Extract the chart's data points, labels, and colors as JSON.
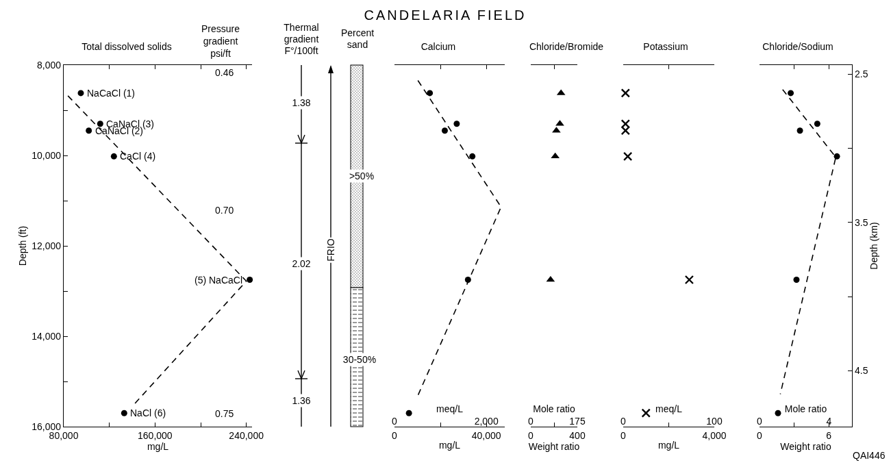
{
  "chart_data": [
    {
      "type": "scatter",
      "title": "Total dissolved solids",
      "xlabel": "mg/L",
      "ylabel": "Depth (ft)",
      "xlim": [
        80000,
        245000
      ],
      "xticks": [
        {
          "value": 80000,
          "label": "80,000"
        },
        {
          "value": 120000,
          "label": null
        },
        {
          "value": 160000,
          "label": "160,000"
        },
        {
          "value": 200000,
          "label": null
        },
        {
          "value": 240000,
          "label": "240,000"
        }
      ],
      "ylim": [
        16000,
        8000
      ],
      "yticks": [
        {
          "value": 8000,
          "label": "8,000"
        },
        {
          "value": 9000,
          "label": null
        },
        {
          "value": 10000,
          "label": "10,000"
        },
        {
          "value": 11000,
          "label": null
        },
        {
          "value": 12000,
          "label": "12,000"
        },
        {
          "value": 13000,
          "label": null
        },
        {
          "value": 14000,
          "label": "14,000"
        },
        {
          "value": 15000,
          "label": null
        },
        {
          "value": 16000,
          "label": "16,000"
        }
      ],
      "series": [
        {
          "type": "scatter",
          "marker": "circle",
          "color": "#000000",
          "x": [
            95000,
            112000,
            102000,
            124000,
            243000,
            133000
          ],
          "values": [
            8620,
            9300,
            9450,
            10020,
            12750,
            15700
          ]
        },
        {
          "type": "line",
          "marker": "none",
          "line_style": "dashed",
          "color": "#000000",
          "x": [
            83700,
            240000,
            142300
          ],
          "values": [
            8680,
            12780,
            15490
          ]
        }
      ],
      "annotations": [
        "Pressure\ngradient\npsi/ft",
        {
          "text": "NaCaCl (1)",
          "x": 95000,
          "y": 8620
        },
        {
          "text": "CaNaCl (3)",
          "x": 112000,
          "y": 9300
        },
        {
          "text": "CaNaCl (2)",
          "x": 102000,
          "y": 9450
        },
        {
          "text": "CaCl (4)",
          "x": 124000,
          "y": 10020
        },
        {
          "text": "(5) NaCaCl",
          "x": 243000,
          "y": 12750
        },
        {
          "text": "NaCl (6)",
          "x": 133000,
          "y": 15700
        },
        "0.46",
        "0.70",
        "0.75"
      ]
    },
    {
      "type": "other",
      "title": "CANDELARIA FIELD",
      "annotations": [
        "Thermal\ngradient\nF°/100ft",
        "1.38",
        "2.02",
        "1.36",
        "Percent\nsand",
        ">50%",
        "30-50%",
        "FRIO"
      ]
    },
    {
      "type": "scatter",
      "title": "Calcium",
      "xlabel": "mg/L",
      "x2label": "meq/L",
      "xlim": [
        0,
        48000
      ],
      "xticks": [
        0,
        {
          "value": 20000,
          "label": null
        },
        {
          "value": 40000,
          "label": "40,000"
        }
      ],
      "x2lim": [
        0,
        2400
      ],
      "x2ticks": [
        0,
        {
          "value": 2000,
          "label": "2,000"
        }
      ],
      "ylim": [
        16000,
        8000
      ],
      "tick_labels": "x",
      "series": [
        {
          "type": "scatter",
          "marker": "circle",
          "color": "#000000",
          "x": [
            15400,
            27100,
            21900,
            33900,
            32000,
            6300
          ],
          "values": [
            8620,
            9300,
            9450,
            10020,
            12750,
            15700
          ]
        },
        {
          "type": "line",
          "marker": "none",
          "line_style": "dashed",
          "color": "#000000",
          "x": [
            10200,
            46400,
            10200
          ],
          "values": [
            8340,
            11140,
            15310
          ]
        }
      ]
    },
    {
      "type": "scatter",
      "title": "Chloride/Bromide",
      "xlabel": "Weight ratio",
      "x2label": "Mole ratio",
      "xlim": [
        0,
        400
      ],
      "xticks": [
        0,
        {
          "value": 200,
          "label": null
        },
        400
      ],
      "x2lim": [
        0,
        175
      ],
      "x2ticks": [
        0,
        175
      ],
      "ylim": [
        16000,
        8000
      ],
      "tick_labels": "x",
      "series": [
        {
          "type": "scatter",
          "marker": "triangle",
          "color": "#000000",
          "x": [
            260,
            250,
            220,
            210,
            170
          ],
          "values": [
            8620,
            9300,
            9450,
            10020,
            12750
          ]
        }
      ]
    },
    {
      "type": "scatter",
      "title": "Potassium",
      "xlabel": "mg/L",
      "x2label": "meq/L",
      "xlim": [
        0,
        4000
      ],
      "xticks": [
        0,
        {
          "value": 2000,
          "label": null
        },
        {
          "value": 4000,
          "label": "4,000"
        }
      ],
      "x2lim": [
        0,
        100
      ],
      "x2ticks": [
        0,
        100
      ],
      "ylim": [
        16000,
        8000
      ],
      "tick_labels": "x",
      "series": [
        {
          "type": "scatter",
          "marker": "cross",
          "color": "#000000",
          "x": [
            100,
            100,
            100,
            200,
            2900,
            1000
          ],
          "values": [
            8620,
            9300,
            9450,
            10020,
            12750,
            15700
          ]
        }
      ]
    },
    {
      "type": "scatter",
      "title": "Chloride/Sodium",
      "xlabel": "Weight ratio",
      "x2label": "Mole ratio",
      "y2label": "Depth (km)",
      "xlim": [
        0,
        8
      ],
      "xticks": [
        0,
        {
          "value": 3,
          "label": null
        },
        6
      ],
      "x2lim": [
        0,
        5.33
      ],
      "x2ticks": [
        0,
        4
      ],
      "ylim": [
        16000,
        8000
      ],
      "y2lim": [
        4.877,
        2.438
      ],
      "y2ticks": [
        2.5,
        {
          "value": 3,
          "label": null
        },
        3.5,
        {
          "value": 4,
          "label": null
        },
        4.5
      ],
      "series": [
        {
          "type": "scatter",
          "marker": "circle",
          "color": "#000000",
          "x": [
            2.7,
            5.0,
            3.5,
            6.7,
            3.2,
            1.6
          ],
          "values": [
            8620,
            9300,
            9450,
            10020,
            12750,
            15700
          ]
        },
        {
          "type": "line",
          "marker": "none",
          "line_style": "dashed",
          "color": "#000000",
          "x": [
            2.0,
            6.6,
            1.8
          ],
          "values": [
            8540,
            10040,
            15280
          ]
        }
      ],
      "annotations": [
        "QAI446"
      ]
    }
  ]
}
